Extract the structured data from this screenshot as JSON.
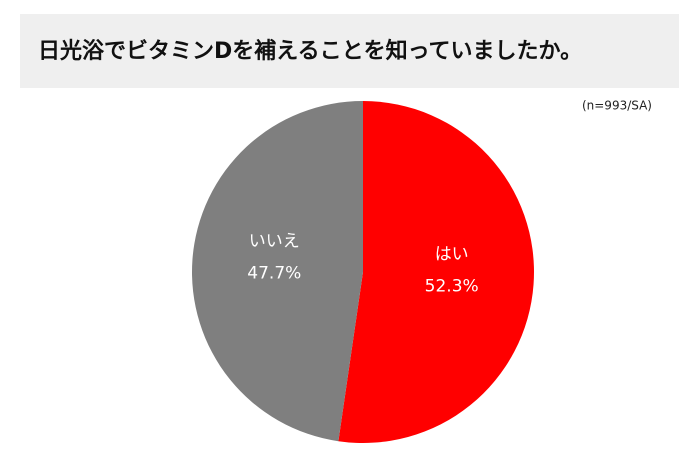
{
  "chart_data": {
    "type": "pie",
    "title": "日光浴でビタミンDを補えることを知っていましたか。",
    "subtitle": "(n=993/SA)",
    "categories": [
      "はい",
      "いいえ"
    ],
    "values": [
      52.3,
      47.7
    ],
    "value_labels": [
      "52.3%",
      "47.7%"
    ],
    "colors": [
      "#ff0000",
      "#7f7f7f"
    ]
  }
}
